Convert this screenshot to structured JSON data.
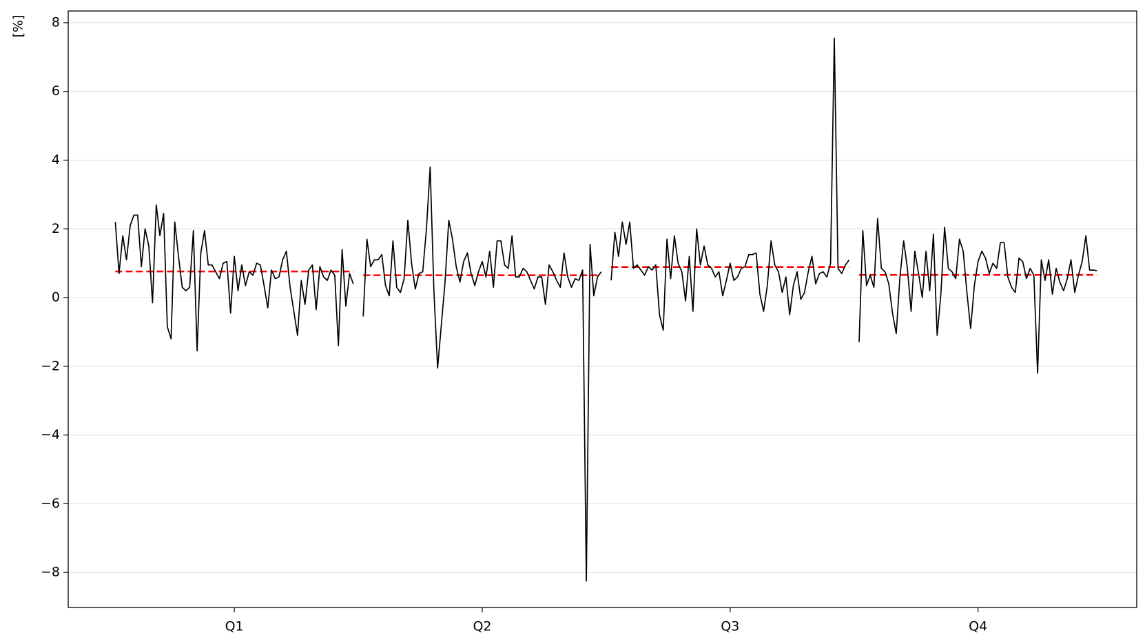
{
  "chart_data": {
    "type": "subseries",
    "y_label": "[%]",
    "categories": [
      "Q1",
      "Q2",
      "Q3",
      "Q4"
    ],
    "xlim": [
      -0.67,
      3.64
    ],
    "ylim": [
      -9.02,
      8.34
    ],
    "yticks": [
      {
        "value": -8,
        "label": "−8"
      },
      {
        "value": -6,
        "label": "−6"
      },
      {
        "value": -4,
        "label": "−4"
      },
      {
        "value": -2,
        "label": "−2"
      },
      0,
      2,
      4,
      6,
      8
    ],
    "grid": true,
    "line_color": "#000000",
    "mean_color": "#ff0000",
    "groups": [
      {
        "mean": 0.76,
        "values": [
          2.2,
          0.7,
          1.8,
          1.1,
          2.1,
          2.4,
          2.4,
          0.9,
          2.0,
          1.5,
          -0.15,
          2.7,
          1.8,
          2.45,
          -0.85,
          -1.2,
          2.2,
          1.2,
          0.3,
          0.2,
          0.3,
          1.95,
          -1.55,
          1.3,
          1.95,
          0.95,
          0.95,
          0.75,
          0.55,
          1.0,
          1.05,
          -0.45,
          1.2,
          0.2,
          0.95,
          0.35,
          0.75,
          0.65,
          1.0,
          0.95,
          0.35,
          -0.3,
          0.8,
          0.55,
          0.6,
          1.1,
          1.35,
          0.3,
          -0.4,
          -1.1,
          0.5,
          -0.2,
          0.8,
          0.95,
          -0.35,
          0.9,
          0.6,
          0.5,
          0.8,
          0.65,
          -1.4,
          1.4,
          -0.25,
          0.7,
          0.4
        ]
      },
      {
        "mean": 0.65,
        "values": [
          -0.55,
          1.7,
          0.9,
          1.1,
          1.1,
          1.25,
          0.35,
          0.05,
          1.65,
          0.3,
          0.15,
          0.55,
          2.25,
          1.0,
          0.25,
          0.7,
          0.75,
          2.0,
          3.8,
          0.2,
          -2.05,
          -0.8,
          0.45,
          2.25,
          1.7,
          0.9,
          0.45,
          1.05,
          1.3,
          0.7,
          0.35,
          0.75,
          1.05,
          0.6,
          1.35,
          0.3,
          1.65,
          1.65,
          0.95,
          0.85,
          1.8,
          0.6,
          0.6,
          0.85,
          0.75,
          0.5,
          0.25,
          0.6,
          0.6,
          -0.2,
          0.95,
          0.75,
          0.5,
          0.3,
          1.3,
          0.6,
          0.3,
          0.55,
          0.5,
          0.8,
          -8.25,
          1.55,
          0.05,
          0.6,
          0.75
        ]
      },
      {
        "mean": 0.89,
        "values": [
          0.5,
          1.9,
          1.2,
          2.2,
          1.55,
          2.2,
          0.85,
          0.95,
          0.8,
          0.65,
          0.9,
          0.8,
          0.95,
          -0.5,
          -0.95,
          1.7,
          0.55,
          1.8,
          1.0,
          0.75,
          -0.1,
          1.2,
          -0.4,
          2.0,
          0.95,
          1.5,
          0.95,
          0.85,
          0.6,
          0.75,
          0.05,
          0.5,
          1.0,
          0.5,
          0.6,
          0.85,
          0.9,
          1.25,
          1.25,
          1.3,
          0.1,
          -0.4,
          0.35,
          1.65,
          0.95,
          0.75,
          0.15,
          0.6,
          -0.5,
          0.35,
          0.75,
          -0.05,
          0.15,
          0.75,
          1.2,
          0.4,
          0.7,
          0.75,
          0.6,
          1.0,
          7.55,
          0.85,
          0.7,
          0.95,
          1.1
        ]
      },
      {
        "mean": 0.66,
        "values": [
          -1.3,
          1.95,
          0.35,
          0.65,
          0.3,
          2.3,
          0.85,
          0.75,
          0.4,
          -0.45,
          -1.05,
          0.6,
          1.65,
          0.85,
          -0.4,
          1.35,
          0.7,
          0.0,
          1.35,
          0.2,
          1.85,
          -1.1,
          0.1,
          2.05,
          0.85,
          0.75,
          0.55,
          1.7,
          1.35,
          0.15,
          -0.9,
          0.35,
          1.05,
          1.35,
          1.15,
          0.7,
          1.0,
          0.85,
          1.6,
          1.6,
          0.6,
          0.3,
          0.15,
          1.15,
          1.05,
          0.55,
          0.85,
          0.65,
          -2.2,
          1.1,
          0.5,
          1.1,
          0.1,
          0.85,
          0.45,
          0.2,
          0.55,
          1.1,
          0.15,
          0.65,
          1.05,
          1.8,
          0.8,
          0.8,
          0.78
        ]
      }
    ]
  }
}
